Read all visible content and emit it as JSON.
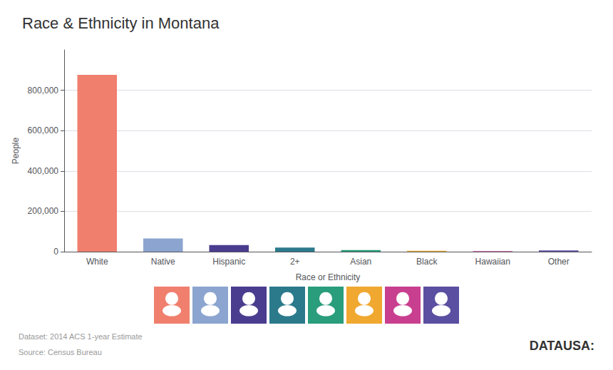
{
  "chart_data": {
    "type": "bar",
    "title": "Race & Ethnicity in Montana",
    "categories": [
      "White",
      "Native",
      "Hispanic",
      "2+",
      "Asian",
      "Black",
      "Hawaiian",
      "Other"
    ],
    "values": [
      876053,
      65761,
      32890,
      20527,
      8082,
      4694,
      2407,
      5845
    ],
    "colors": [
      "#f07f6e",
      "#8ca5d0",
      "#4a3d8f",
      "#2b7a8c",
      "#2a9d7c",
      "#f0a830",
      "#c93f8f",
      "#5a4fa0"
    ],
    "xlabel": "Race or Ethnicity",
    "ylabel": "People",
    "ylim": [
      0,
      1000000
    ],
    "yticks": [
      0,
      {
        "value": 200000,
        "label": "200,000"
      },
      {
        "value": 400000,
        "label": "400,000"
      },
      {
        "value": 600000,
        "label": "600,000"
      },
      {
        "value": 800000,
        "label": "800,000"
      }
    ],
    "grid": true,
    "annotations": [
      "Dataset: 2014 ACS 1-year Estimate",
      "Source: Census Bureau",
      "DATAUSA:"
    ]
  }
}
